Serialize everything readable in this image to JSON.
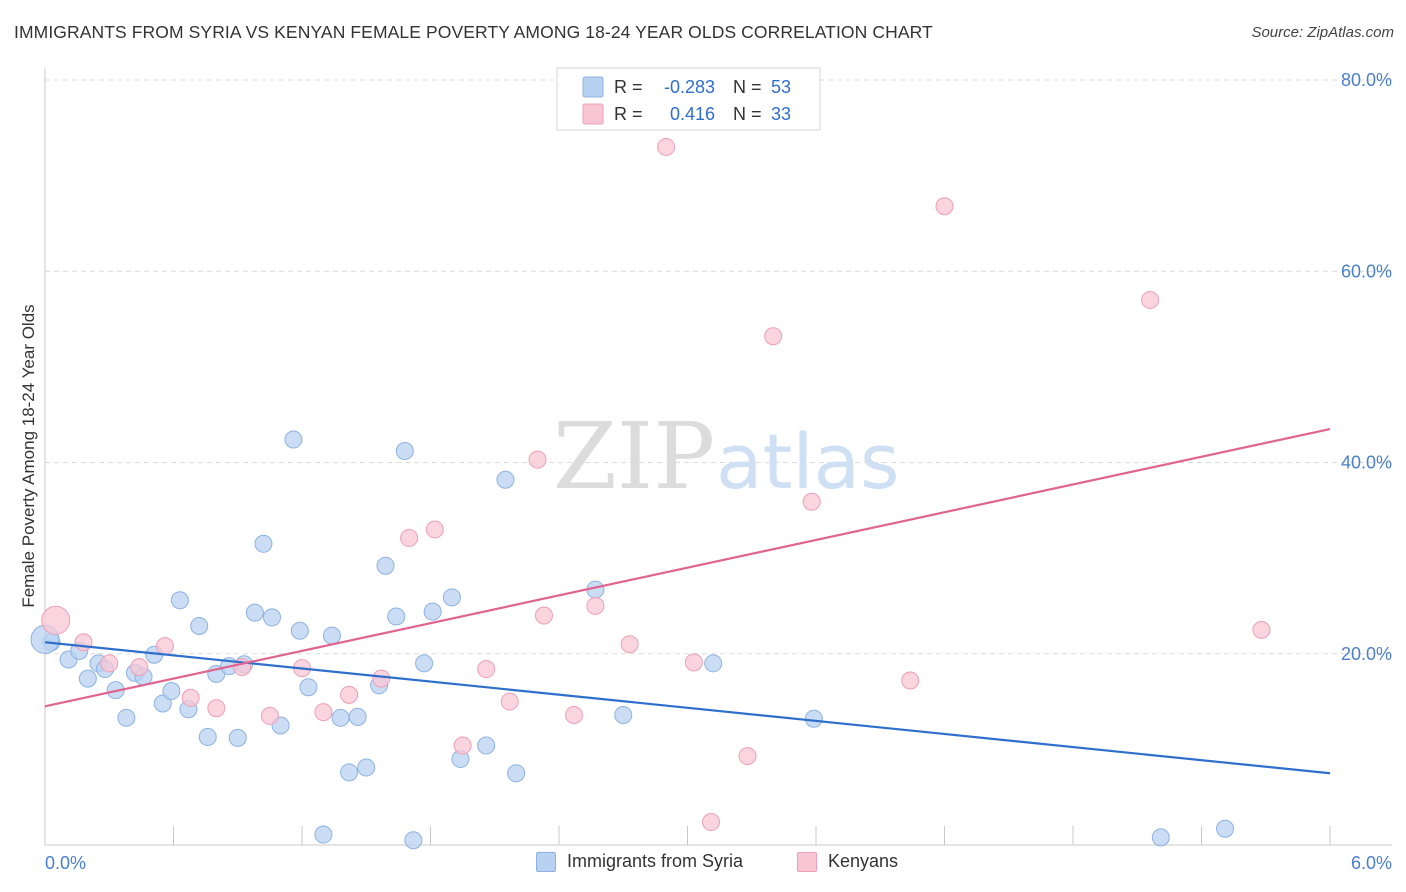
{
  "title": "IMMIGRANTS FROM SYRIA VS KENYAN FEMALE POVERTY AMONG 18-24 YEAR OLDS CORRELATION CHART",
  "source": "Source: ZipAtlas.com",
  "watermark": {
    "zip": "ZIP",
    "atlas": "atlas"
  },
  "colors": {
    "syria_fill": "#b8d1f1",
    "syria_stroke": "#8db2e2",
    "syria_line": "#2f6fcc",
    "kenya_fill": "#f8c5d4",
    "kenya_stroke": "#ee9fb8",
    "kenya_line": "#e0648f",
    "axis_label": "#4a7fc9",
    "grid": "#dcdcdc"
  },
  "legend": {
    "r_label": "R =",
    "n_label": "N =",
    "entries": [
      {
        "r": "-0.283",
        "n": "53"
      },
      {
        "r": "0.416",
        "n": "33"
      }
    ]
  },
  "chart_data": {
    "type": "scatter",
    "title": "IMMIGRANTS FROM SYRIA VS KENYAN FEMALE POVERTY AMONG 18-24 YEAR OLDS CORRELATION CHART",
    "xlabel": "",
    "ylabel": "Female Poverty Among 18-24 Year Olds",
    "xlim": [
      0,
      6
    ],
    "ylim": [
      0,
      80
    ],
    "x_tick_labels": [
      "0.0%",
      "6.0%"
    ],
    "y_ticks": [
      20,
      40,
      60,
      80
    ],
    "y_tick_labels": [
      "20.0%",
      "40.0%",
      "60.0%",
      "80.0%"
    ],
    "grid": true,
    "legend_position": "top-center",
    "series": [
      {
        "name": "Immigrants from Syria",
        "r": -0.283,
        "n": 53,
        "trend": {
          "x": [
            0,
            6
          ],
          "y": [
            21.2,
            7.5
          ]
        },
        "points": [
          [
            0.03,
            21.2
          ],
          [
            0.11,
            19.4
          ],
          [
            0.16,
            20.3
          ],
          [
            0.2,
            17.4
          ],
          [
            0.25,
            19.0
          ],
          [
            0.28,
            18.4
          ],
          [
            0.33,
            16.2
          ],
          [
            0.38,
            13.3
          ],
          [
            0.42,
            18.0
          ],
          [
            0.46,
            17.6
          ],
          [
            0.51,
            19.9
          ],
          [
            0.55,
            14.8
          ],
          [
            0.59,
            16.1
          ],
          [
            0.63,
            25.6
          ],
          [
            0.67,
            14.2
          ],
          [
            0.72,
            22.9
          ],
          [
            0.76,
            11.3
          ],
          [
            0.8,
            17.9
          ],
          [
            0.86,
            18.7
          ],
          [
            0.9,
            11.2
          ],
          [
            0.93,
            18.9
          ],
          [
            0.98,
            24.3
          ],
          [
            1.02,
            31.5
          ],
          [
            1.06,
            23.8
          ],
          [
            1.1,
            12.5
          ],
          [
            1.16,
            42.4
          ],
          [
            1.19,
            22.4
          ],
          [
            1.23,
            16.5
          ],
          [
            1.3,
            1.1
          ],
          [
            1.34,
            21.9
          ],
          [
            1.38,
            13.3
          ],
          [
            1.42,
            7.6
          ],
          [
            1.46,
            13.4
          ],
          [
            1.5,
            8.1
          ],
          [
            1.56,
            16.7
          ],
          [
            1.59,
            29.2
          ],
          [
            1.64,
            23.9
          ],
          [
            1.68,
            41.2
          ],
          [
            1.72,
            0.5
          ],
          [
            1.77,
            19.0
          ],
          [
            1.81,
            24.4
          ],
          [
            1.9,
            25.9
          ],
          [
            1.94,
            9.0
          ],
          [
            2.06,
            10.4
          ],
          [
            2.15,
            38.2
          ],
          [
            2.2,
            7.5
          ],
          [
            2.57,
            26.7
          ],
          [
            2.7,
            13.6
          ],
          [
            3.12,
            19.0
          ],
          [
            3.59,
            13.2
          ],
          [
            5.21,
            0.8
          ],
          [
            5.51,
            1.7
          ],
          [
            0.0,
            21.5
          ]
        ]
      },
      {
        "name": "Kenyans",
        "r": 0.416,
        "n": 33,
        "trend": {
          "x": [
            0,
            6
          ],
          "y": [
            14.5,
            43.5
          ]
        },
        "points": [
          [
            0.05,
            23.5
          ],
          [
            0.18,
            21.2
          ],
          [
            0.3,
            19.0
          ],
          [
            0.44,
            18.6
          ],
          [
            0.56,
            20.8
          ],
          [
            0.68,
            15.4
          ],
          [
            0.8,
            14.3
          ],
          [
            0.92,
            18.6
          ],
          [
            1.05,
            13.5
          ],
          [
            1.2,
            18.5
          ],
          [
            1.3,
            13.9
          ],
          [
            1.42,
            15.7
          ],
          [
            1.57,
            17.4
          ],
          [
            1.7,
            32.1
          ],
          [
            1.82,
            33.0
          ],
          [
            1.95,
            10.4
          ],
          [
            2.06,
            18.4
          ],
          [
            2.17,
            15.0
          ],
          [
            2.3,
            40.3
          ],
          [
            2.33,
            24.0
          ],
          [
            2.47,
            13.6
          ],
          [
            2.57,
            25.0
          ],
          [
            2.73,
            21.0
          ],
          [
            2.9,
            73.0
          ],
          [
            3.03,
            19.1
          ],
          [
            3.11,
            2.4
          ],
          [
            3.28,
            9.3
          ],
          [
            3.4,
            53.2
          ],
          [
            3.58,
            35.9
          ],
          [
            4.04,
            17.2
          ],
          [
            4.2,
            66.8
          ],
          [
            5.16,
            57.0
          ],
          [
            5.68,
            22.5
          ]
        ]
      }
    ]
  },
  "bottom_legend": [
    {
      "label": "Immigrants from Syria"
    },
    {
      "label": "Kenyans"
    }
  ]
}
